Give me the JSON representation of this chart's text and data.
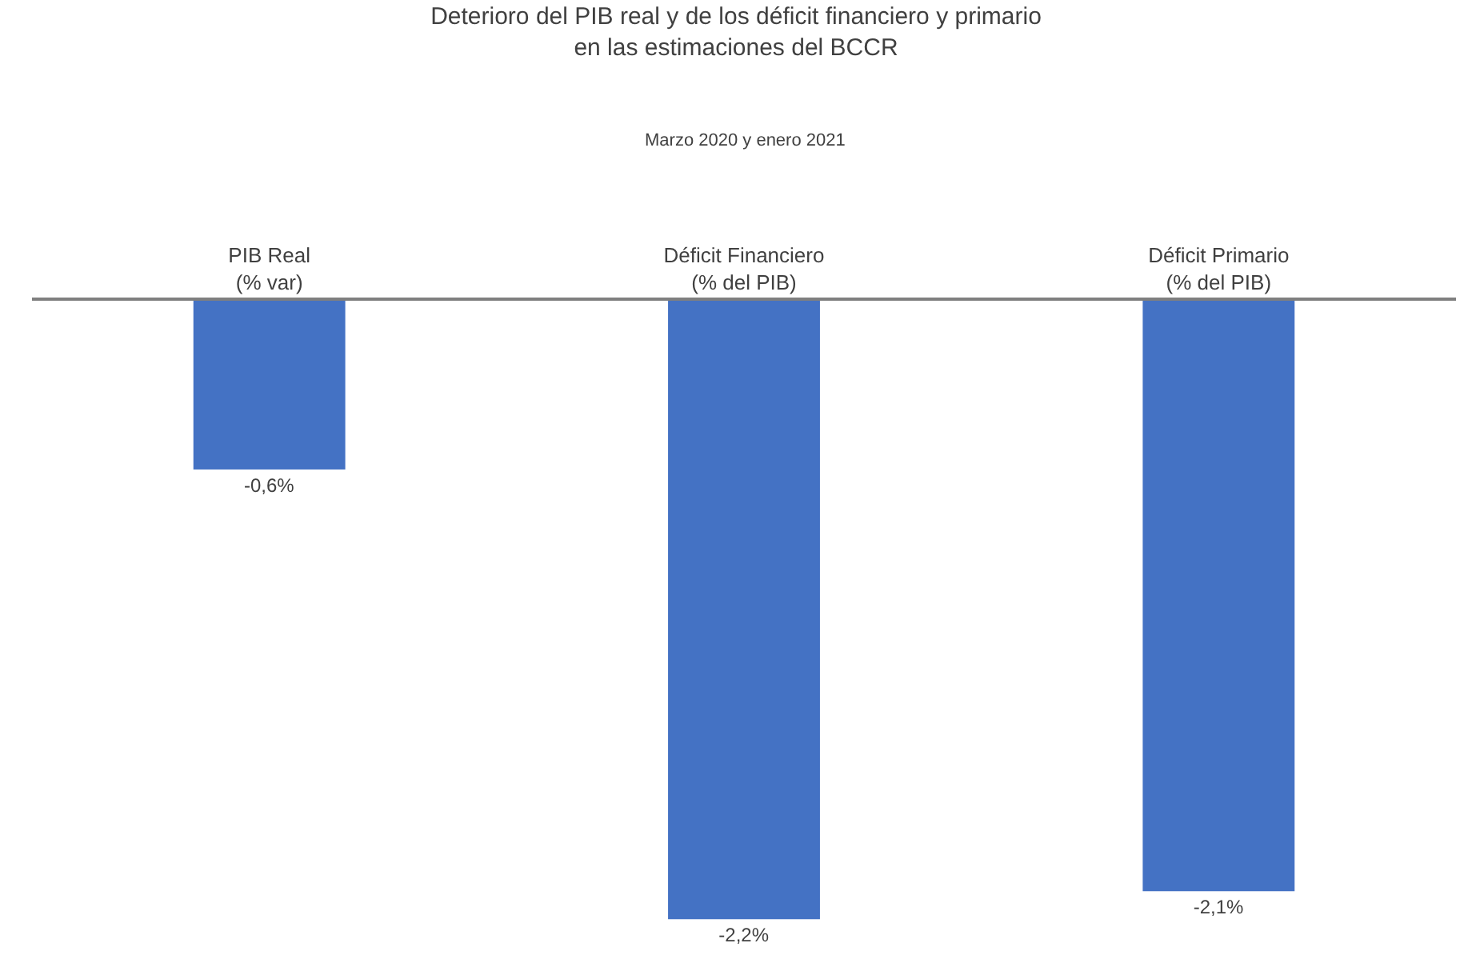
{
  "chart_data": {
    "type": "bar",
    "title": "Deterioro del PIB real y de los déficit financiero y primario\nen las estimaciones del BCCR",
    "subtitle": "Marzo 2020 y enero 2021",
    "categories": [
      "PIB Real\n(% var)",
      "Déficit Financiero\n(% del PIB)",
      "Déficit Primario\n(% del PIB)"
    ],
    "values": [
      -0.6,
      -2.2,
      -2.1
    ],
    "color": "#4472c4",
    "value_labels": [
      "-0,6%",
      "-2,2%",
      "-2,1%"
    ],
    "tick_labels": "x",
    "grid": false,
    "legend": false
  }
}
